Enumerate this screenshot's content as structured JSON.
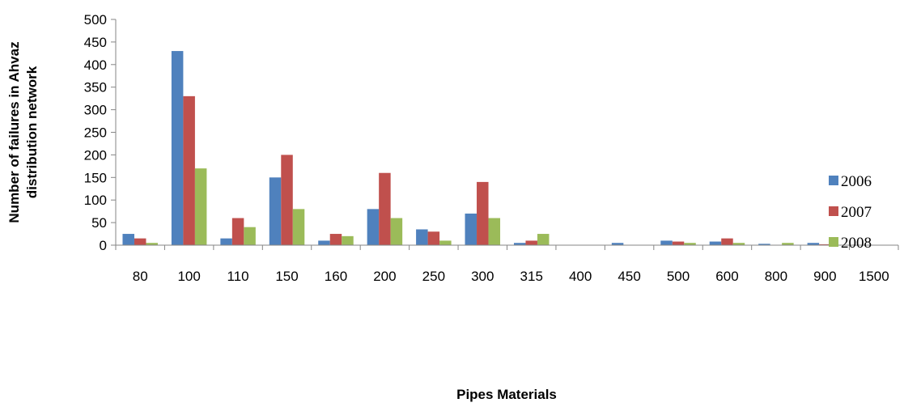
{
  "chart_data": {
    "type": "bar",
    "title": "",
    "xlabel": "Pipes  Materials",
    "ylabel_lines": [
      "Number of failures in Ahvaz",
      "distribution network"
    ],
    "ylim": [
      0,
      500
    ],
    "yticks": [
      0,
      50,
      100,
      150,
      200,
      250,
      300,
      350,
      400,
      450,
      500
    ],
    "grid": false,
    "legend_position": "right",
    "categories": [
      "80",
      "100",
      "110",
      "150",
      "160",
      "200",
      "250",
      "300",
      "315",
      "400",
      "450",
      "500",
      "600",
      "800",
      "900",
      "1500"
    ],
    "series": [
      {
        "name": "2006",
        "color": "#4F81BD",
        "values": [
          25,
          430,
          15,
          150,
          10,
          80,
          35,
          70,
          5,
          0,
          5,
          10,
          8,
          3,
          5,
          0
        ]
      },
      {
        "name": "2007",
        "color": "#C0504D",
        "values": [
          15,
          330,
          60,
          200,
          25,
          160,
          30,
          140,
          10,
          0,
          0,
          8,
          15,
          0,
          2,
          0
        ]
      },
      {
        "name": "2008",
        "color": "#9BBB59",
        "values": [
          5,
          170,
          40,
          80,
          20,
          60,
          10,
          60,
          25,
          0,
          0,
          5,
          5,
          5,
          0,
          0
        ]
      }
    ]
  }
}
